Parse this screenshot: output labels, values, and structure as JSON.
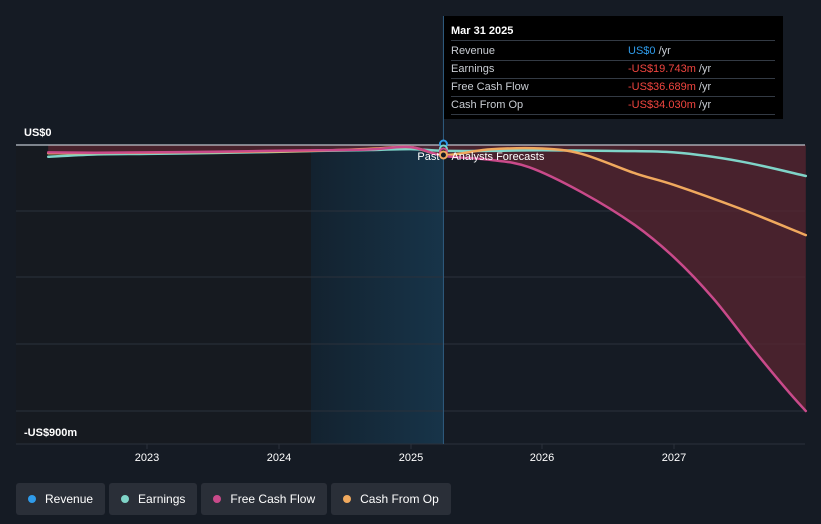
{
  "chart_data": {
    "type": "line",
    "ylim": [
      -900,
      0
    ],
    "y_top_label": "US$0",
    "y_bottom_label": "-US$900m",
    "x_ticks": [
      "2023",
      "2024",
      "2025",
      "2026",
      "2027"
    ],
    "past_label": "Past",
    "forecast_label": "Analysts Forecasts",
    "highlight_date": 2025.25,
    "series": [
      {
        "name": "Revenue",
        "color": "#2f9bea",
        "points": [
          [
            2022.25,
            0
          ],
          [
            2023.0,
            0
          ],
          [
            2024.0,
            0
          ],
          [
            2025.25,
            0
          ],
          [
            2026.0,
            0
          ],
          [
            2027.0,
            0
          ],
          [
            2028.0,
            0
          ]
        ]
      },
      {
        "name": "Earnings",
        "color": "#7fd4c8",
        "points": [
          [
            2022.25,
            -40
          ],
          [
            2022.6,
            -32
          ],
          [
            2023.0,
            -30
          ],
          [
            2023.5,
            -27
          ],
          [
            2023.9,
            -24
          ],
          [
            2024.3,
            -20
          ],
          [
            2024.7,
            -17
          ],
          [
            2025.0,
            -14
          ],
          [
            2025.25,
            -19.743
          ],
          [
            2025.6,
            -20
          ],
          [
            2026.0,
            -18
          ],
          [
            2026.5,
            -20
          ],
          [
            2027.0,
            -25
          ],
          [
            2027.5,
            -55
          ],
          [
            2028.0,
            -105
          ]
        ]
      },
      {
        "name": "Free Cash Flow",
        "color": "#c94a8a",
        "points": [
          [
            2022.25,
            -25
          ],
          [
            2022.6,
            -26
          ],
          [
            2023.0,
            -25
          ],
          [
            2023.5,
            -23
          ],
          [
            2023.9,
            -20
          ],
          [
            2024.3,
            -18
          ],
          [
            2024.7,
            -15
          ],
          [
            2025.0,
            -7
          ],
          [
            2025.25,
            -36.689
          ],
          [
            2025.6,
            -50
          ],
          [
            2025.9,
            -75
          ],
          [
            2026.3,
            -160
          ],
          [
            2026.7,
            -270
          ],
          [
            2027.0,
            -380
          ],
          [
            2027.3,
            -520
          ],
          [
            2027.6,
            -690
          ],
          [
            2027.85,
            -825
          ],
          [
            2028.0,
            -900
          ]
        ]
      },
      {
        "name": "Cash From Op",
        "color": "#f0a95e",
        "points": [
          [
            2022.25,
            -28
          ],
          [
            2022.6,
            -27
          ],
          [
            2023.0,
            -26
          ],
          [
            2023.5,
            -24
          ],
          [
            2023.9,
            -22
          ],
          [
            2024.3,
            -19
          ],
          [
            2024.7,
            -13
          ],
          [
            2025.0,
            -7
          ],
          [
            2025.25,
            -34.03
          ],
          [
            2025.6,
            -15
          ],
          [
            2026.0,
            -12
          ],
          [
            2026.3,
            -30
          ],
          [
            2026.7,
            -95
          ],
          [
            2027.0,
            -135
          ],
          [
            2027.5,
            -215
          ],
          [
            2028.0,
            -305
          ]
        ]
      }
    ]
  },
  "tooltip": {
    "date": "Mar 31 2025",
    "rows": [
      {
        "label": "Revenue",
        "value": "US$0",
        "unit": " /yr",
        "tone": "pos"
      },
      {
        "label": "Earnings",
        "value": "-US$19.743m",
        "unit": " /yr",
        "tone": "neg"
      },
      {
        "label": "Free Cash Flow",
        "value": "-US$36.689m",
        "unit": " /yr",
        "tone": "neg"
      },
      {
        "label": "Cash From Op",
        "value": "-US$34.030m",
        "unit": " /yr",
        "tone": "neg"
      }
    ]
  },
  "legend": [
    {
      "label": "Revenue",
      "color": "#2f9bea"
    },
    {
      "label": "Earnings",
      "color": "#7fd4c8"
    },
    {
      "label": "Free Cash Flow",
      "color": "#c94a8a"
    },
    {
      "label": "Cash From Op",
      "color": "#f0a95e"
    }
  ]
}
